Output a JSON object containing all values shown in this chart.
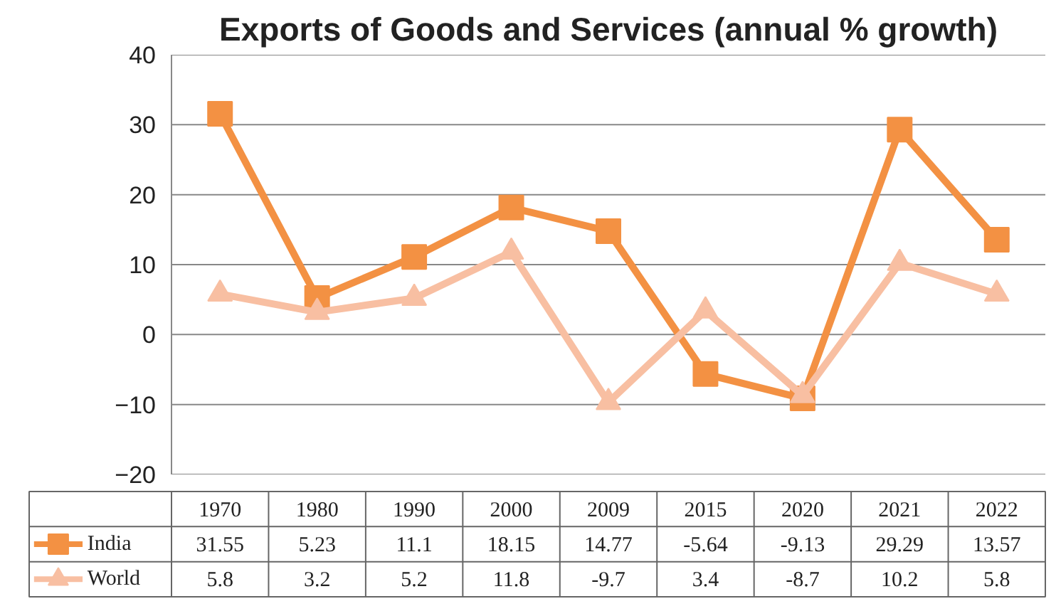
{
  "chart_data": {
    "type": "line",
    "title": "Exports of Goods and Services (annual % growth)",
    "categories": [
      "1970",
      "1980",
      "1990",
      "2000",
      "2009",
      "2015",
      "2020",
      "2021",
      "2022"
    ],
    "series": [
      {
        "name": "India",
        "color": "#f39143",
        "marker": "square",
        "values": [
          31.55,
          5.23,
          11.1,
          18.15,
          14.77,
          -5.64,
          -9.13,
          29.29,
          13.57
        ]
      },
      {
        "name": "World",
        "color": "#f8bfa2",
        "marker": "triangle",
        "values": [
          5.8,
          3.2,
          5.2,
          11.8,
          -9.7,
          3.4,
          -8.7,
          10.2,
          5.8
        ]
      }
    ],
    "ylim": [
      -20,
      40
    ],
    "yticks": [
      -20,
      -10,
      0,
      10,
      20,
      30,
      40
    ],
    "grid": "y",
    "legend": "bottom",
    "data_labels": true,
    "line_style": "solid"
  }
}
